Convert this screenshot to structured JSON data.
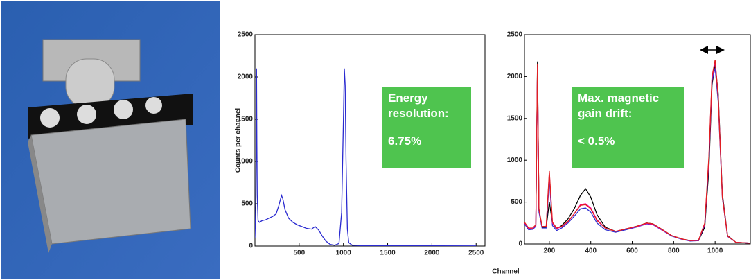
{
  "chart_data": [
    {
      "type": "line",
      "y_label": "Counts per channel",
      "x_label": "Channel",
      "x": [
        0,
        10,
        18,
        22,
        26,
        35,
        50,
        80,
        120,
        160,
        200,
        240,
        270,
        300,
        315,
        340,
        380,
        430,
        480,
        530,
        580,
        640,
        680,
        720,
        760,
        800,
        850,
        900,
        950,
        980,
        1000,
        1010,
        1020,
        1030,
        1045,
        1060,
        1100,
        1200,
        1500,
        2000,
        2500
      ],
      "series": [
        {
          "color": "#2a2ad0",
          "values": [
            100,
            500,
            2100,
            1200,
            600,
            300,
            280,
            300,
            310,
            330,
            350,
            380,
            480,
            600,
            560,
            430,
            330,
            280,
            250,
            230,
            210,
            200,
            230,
            190,
            120,
            60,
            20,
            10,
            30,
            400,
            1500,
            2100,
            1900,
            1000,
            200,
            40,
            10,
            5,
            5,
            3,
            2
          ]
        }
      ],
      "xlim": [
        0,
        2600
      ],
      "xticks": [
        500,
        1000,
        1500,
        2000,
        2500
      ],
      "ylim": [
        0,
        2500
      ],
      "yticks": [
        0,
        500,
        1000,
        1500,
        2000,
        2500
      ],
      "annotations": [
        "Energy resolution:",
        "6.75%"
      ]
    },
    {
      "type": "line",
      "x": [
        80,
        100,
        120,
        135,
        143,
        150,
        165,
        185,
        200,
        215,
        235,
        260,
        290,
        320,
        350,
        375,
        400,
        430,
        470,
        520,
        570,
        620,
        670,
        700,
        740,
        790,
        840,
        880,
        920,
        950,
        970,
        985,
        1000,
        1015,
        1035,
        1060,
        1100,
        1170
      ],
      "series": [
        {
          "color": "#000000",
          "values": [
            250,
            180,
            180,
            220,
            2180,
            400,
            200,
            200,
            500,
            250,
            180,
            220,
            300,
            420,
            580,
            660,
            560,
            350,
            200,
            150,
            180,
            210,
            250,
            240,
            180,
            100,
            60,
            40,
            40,
            200,
            900,
            1900,
            2150,
            1800,
            600,
            100,
            20,
            10
          ]
        },
        {
          "color": "#3030d0",
          "values": [
            240,
            170,
            175,
            210,
            2100,
            380,
            190,
            190,
            780,
            220,
            160,
            190,
            250,
            330,
            420,
            430,
            380,
            250,
            170,
            140,
            170,
            200,
            240,
            230,
            170,
            95,
            55,
            35,
            40,
            230,
            1000,
            1950,
            2100,
            1700,
            550,
            90,
            20,
            10
          ]
        },
        {
          "color": "#ff00a0",
          "values": [
            255,
            185,
            185,
            225,
            2120,
            410,
            205,
            205,
            850,
            250,
            185,
            205,
            265,
            360,
            470,
            480,
            430,
            290,
            190,
            150,
            180,
            205,
            245,
            235,
            175,
            100,
            58,
            38,
            42,
            240,
            1020,
            1980,
            2180,
            1760,
            570,
            95,
            20,
            10
          ]
        },
        {
          "color": "#e02020",
          "values": [
            260,
            190,
            190,
            230,
            2150,
            420,
            210,
            210,
            870,
            260,
            190,
            210,
            270,
            360,
            460,
            470,
            420,
            280,
            190,
            150,
            180,
            210,
            250,
            240,
            180,
            100,
            60,
            40,
            45,
            250,
            1050,
            2000,
            2200,
            1750,
            560,
            95,
            20,
            10
          ]
        }
      ],
      "xlim": [
        80,
        1170
      ],
      "xticks": [
        200,
        400,
        600,
        800,
        1000
      ],
      "ylim": [
        0,
        2500
      ],
      "yticks": [
        0,
        500,
        1000,
        1500,
        2000,
        2500
      ],
      "annotations": [
        "Max. magnetic gain drift:",
        "< 0.5%"
      ]
    }
  ]
}
